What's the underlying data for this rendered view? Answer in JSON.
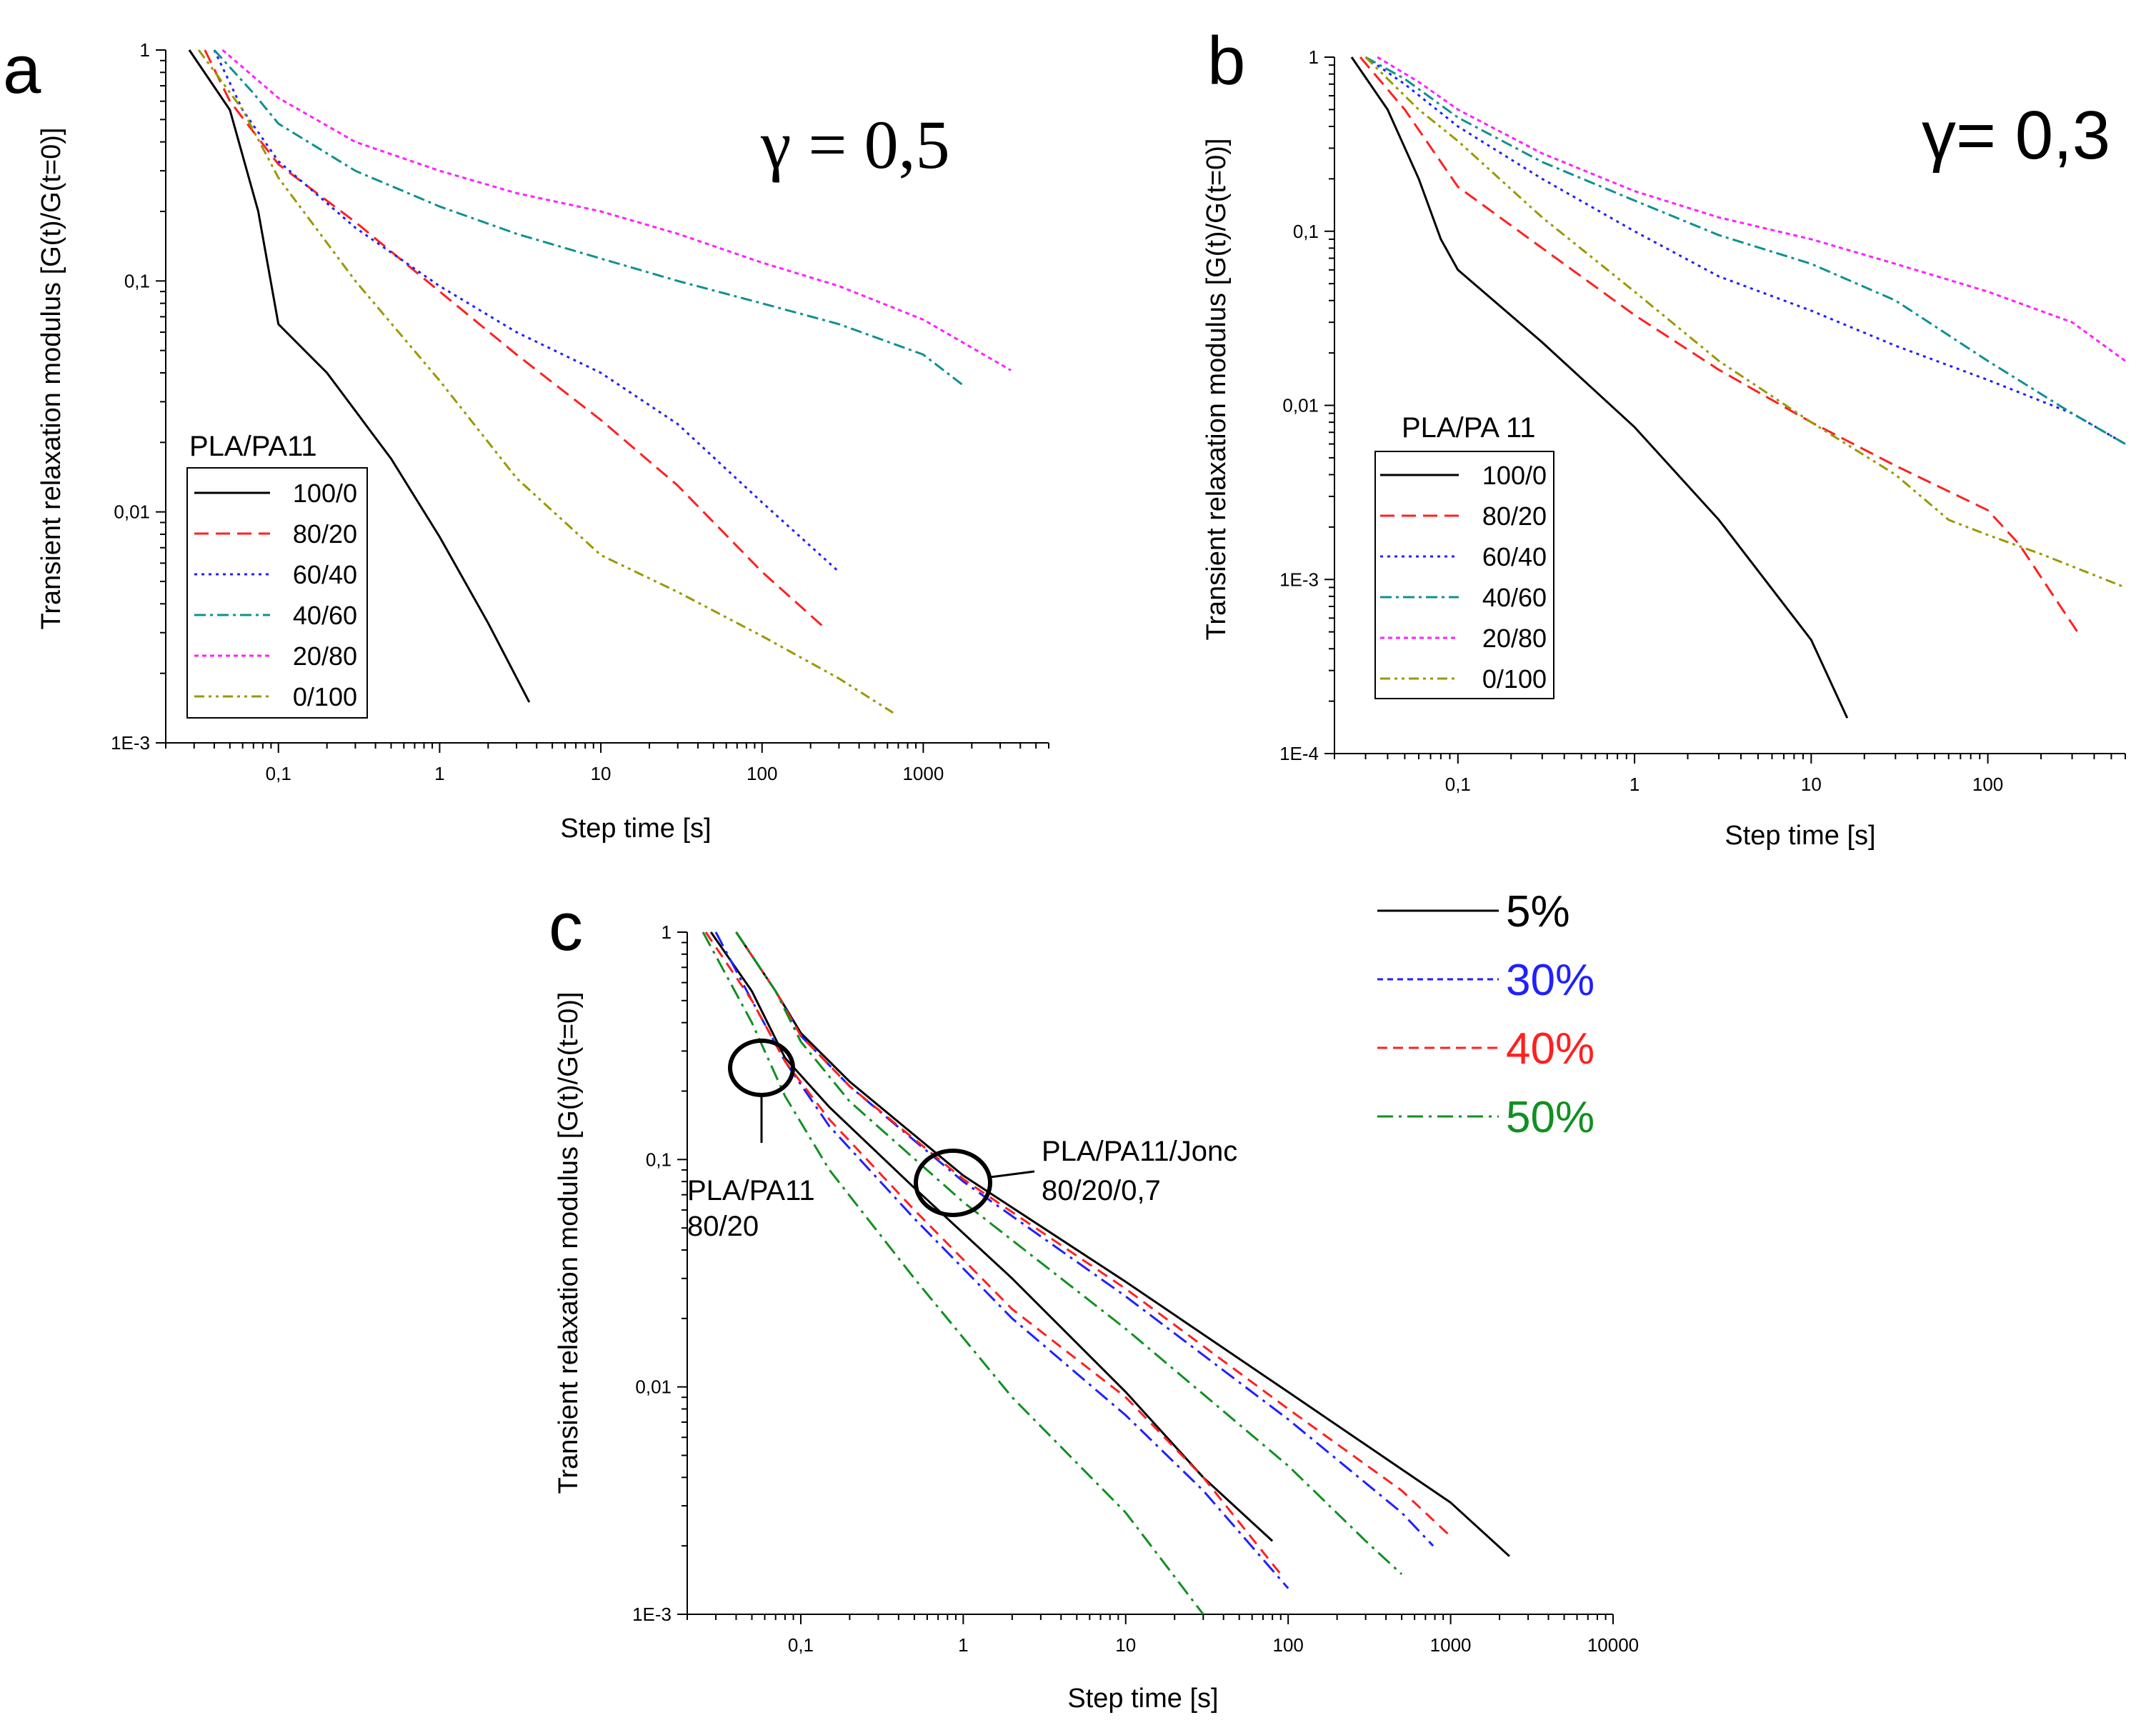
{
  "figure": {
    "ylabel": "Transient relaxation modulus [G(t)/G(t=0)]",
    "xlabel": "Step time [s]",
    "legend_title": "PLA/PA11",
    "legend_title_b": "PLA/PA 11",
    "gamma_a": "γ = 0,5",
    "gamma_b": "γ= 0,3",
    "annotations": [
      {
        "text_lines": [
          "PLA/PA11",
          "80/20"
        ]
      },
      {
        "text_lines": [
          "PLA/PA11/Jonc",
          "80/20/0,7"
        ]
      }
    ],
    "strain_legend": [
      {
        "label": "5%",
        "color": "#000000"
      },
      {
        "label": "30%",
        "color": "#2020ff"
      },
      {
        "label": "40%",
        "color": "#ff2020"
      },
      {
        "label": "50%",
        "color": "#109020"
      }
    ]
  },
  "chart_data": [
    {
      "panel": "a",
      "type": "line",
      "log_x": true,
      "log_y": true,
      "xlim": [
        0.02,
        6000
      ],
      "ylim": [
        0.001,
        1
      ],
      "xticks": [
        0.1,
        1,
        10,
        100,
        1000
      ],
      "xtick_labels": [
        "0,1",
        "1",
        "10",
        "100",
        "1000"
      ],
      "yticks": [
        0.001,
        0.01,
        0.1,
        1
      ],
      "ytick_labels": [
        "1E-3",
        "0,01",
        "0,1",
        "1"
      ],
      "series": [
        {
          "name": "100/0",
          "color": "#000000",
          "dash": "none",
          "x": [
            0.028,
            0.05,
            0.075,
            0.1,
            0.2,
            0.5,
            1,
            2,
            3.6
          ],
          "y": [
            1,
            0.55,
            0.2,
            0.065,
            0.04,
            0.017,
            0.0078,
            0.0033,
            0.0015
          ]
        },
        {
          "name": "80/20",
          "color": "#ff2020",
          "dash": "20 10",
          "x": [
            0.035,
            0.05,
            0.1,
            0.3,
            1,
            3,
            10,
            30,
            100,
            250
          ],
          "y": [
            1,
            0.6,
            0.32,
            0.18,
            0.09,
            0.048,
            0.025,
            0.013,
            0.0055,
            0.0031
          ]
        },
        {
          "name": "60/40",
          "color": "#2020ff",
          "dash": "4 6",
          "x": [
            0.04,
            0.06,
            0.1,
            0.3,
            1,
            3,
            10,
            30,
            100,
            300
          ],
          "y": [
            1,
            0.55,
            0.33,
            0.17,
            0.095,
            0.06,
            0.04,
            0.024,
            0.011,
            0.0055
          ]
        },
        {
          "name": "40/60",
          "color": "#109090",
          "dash": "16 6 4 6",
          "x": [
            0.04,
            0.07,
            0.1,
            0.3,
            1,
            3,
            10,
            30,
            100,
            300,
            1000,
            1800
          ],
          "y": [
            1,
            0.65,
            0.48,
            0.3,
            0.21,
            0.16,
            0.125,
            0.1,
            0.08,
            0.065,
            0.048,
            0.035
          ]
        },
        {
          "name": "20/80",
          "color": "#ff20ff",
          "dash": "6 5",
          "x": [
            0.045,
            0.1,
            0.3,
            1,
            3,
            10,
            30,
            100,
            300,
            1000,
            3500
          ],
          "y": [
            1,
            0.62,
            0.4,
            0.3,
            0.24,
            0.2,
            0.16,
            0.12,
            0.095,
            0.068,
            0.041
          ]
        },
        {
          "name": "0/100",
          "color": "#999900",
          "dash": "14 6 4 6 4 6",
          "x": [
            0.032,
            0.06,
            0.1,
            0.3,
            1,
            3,
            10,
            30,
            100,
            300,
            650
          ],
          "y": [
            1,
            0.55,
            0.28,
            0.1,
            0.037,
            0.014,
            0.0065,
            0.0045,
            0.0029,
            0.0019,
            0.00135
          ]
        }
      ]
    },
    {
      "panel": "b",
      "type": "line",
      "log_x": true,
      "log_y": true,
      "xlim": [
        0.02,
        600
      ],
      "ylim": [
        0.0001,
        1
      ],
      "xticks": [
        0.1,
        1,
        10,
        100
      ],
      "xtick_labels": [
        "0,1",
        "1",
        "10",
        "100"
      ],
      "yticks": [
        0.0001,
        0.001,
        0.01,
        0.1,
        1
      ],
      "ytick_labels": [
        "1E-4",
        "1E-3",
        "0,01",
        "0,1",
        "1"
      ],
      "series": [
        {
          "name": "100/0",
          "color": "#000000",
          "dash": "none",
          "x": [
            0.025,
            0.04,
            0.06,
            0.08,
            0.1,
            0.3,
            1,
            3,
            10,
            16
          ],
          "y": [
            1,
            0.5,
            0.2,
            0.09,
            0.06,
            0.023,
            0.0075,
            0.0022,
            0.00045,
            0.00016
          ]
        },
        {
          "name": "80/20",
          "color": "#ff2020",
          "dash": "20 10",
          "x": [
            0.028,
            0.05,
            0.1,
            0.3,
            1,
            3,
            10,
            30,
            100,
            150,
            330
          ],
          "y": [
            1,
            0.5,
            0.18,
            0.08,
            0.033,
            0.016,
            0.008,
            0.0045,
            0.0025,
            0.0016,
            0.00048
          ]
        },
        {
          "name": "60/40",
          "color": "#2020ff",
          "dash": "4 6",
          "x": [
            0.03,
            0.05,
            0.1,
            0.3,
            1,
            3,
            10,
            30,
            100,
            300,
            600
          ],
          "y": [
            1,
            0.7,
            0.4,
            0.2,
            0.1,
            0.055,
            0.035,
            0.022,
            0.014,
            0.009,
            0.006
          ]
        },
        {
          "name": "40/60",
          "color": "#109090",
          "dash": "16 6 4 6",
          "x": [
            0.03,
            0.05,
            0.1,
            0.3,
            1,
            3,
            10,
            30,
            100,
            300,
            600
          ],
          "y": [
            1,
            0.75,
            0.45,
            0.25,
            0.15,
            0.095,
            0.065,
            0.04,
            0.018,
            0.009,
            0.006
          ]
        },
        {
          "name": "20/80",
          "color": "#ff20ff",
          "dash": "6 5",
          "x": [
            0.035,
            0.06,
            0.1,
            0.3,
            1,
            3,
            10,
            30,
            100,
            300,
            600
          ],
          "y": [
            1,
            0.72,
            0.5,
            0.28,
            0.17,
            0.12,
            0.09,
            0.065,
            0.045,
            0.03,
            0.018
          ]
        },
        {
          "name": "0/100",
          "color": "#999900",
          "dash": "14 6 4 6 4 6",
          "x": [
            0.03,
            0.06,
            0.1,
            0.3,
            1,
            3,
            10,
            30,
            60,
            100,
            200,
            600
          ],
          "y": [
            1,
            0.5,
            0.33,
            0.12,
            0.045,
            0.018,
            0.008,
            0.004,
            0.0022,
            0.0018,
            0.0014,
            0.0009
          ]
        }
      ],
      "legend_title": "PLA/PA 11"
    },
    {
      "panel": "c",
      "type": "line",
      "log_x": true,
      "log_y": true,
      "xlim": [
        0.02,
        10000
      ],
      "ylim": [
        0.001,
        1
      ],
      "xticks": [
        0.1,
        1,
        10,
        100,
        1000,
        10000
      ],
      "xtick_labels": [
        "0,1",
        "1",
        "10",
        "100",
        "1000",
        "10000"
      ],
      "yticks": [
        0.001,
        0.01,
        0.1,
        1
      ],
      "ytick_labels": [
        "1E-3",
        "0,01",
        "0,1",
        "1"
      ],
      "series": [
        {
          "name": "5% PLA/PA11 80/20",
          "color": "#000000",
          "dash": "none",
          "x": [
            0.028,
            0.05,
            0.08,
            0.15,
            0.5,
            2,
            10,
            30,
            80
          ],
          "y": [
            1,
            0.55,
            0.28,
            0.17,
            0.075,
            0.03,
            0.0095,
            0.004,
            0.0021
          ]
        },
        {
          "name": "30% PLA/PA11 80/20",
          "color": "#2020ff",
          "dash": "22 8 4 8",
          "x": [
            0.03,
            0.05,
            0.08,
            0.15,
            0.5,
            2,
            10,
            30,
            100
          ],
          "y": [
            1,
            0.5,
            0.27,
            0.14,
            0.055,
            0.02,
            0.0075,
            0.0035,
            0.0013
          ]
        },
        {
          "name": "40% PLA/PA11 80/20",
          "color": "#ff2020",
          "dash": "16 10",
          "x": [
            0.026,
            0.05,
            0.08,
            0.15,
            0.5,
            2,
            10,
            30,
            90
          ],
          "y": [
            1,
            0.5,
            0.27,
            0.15,
            0.06,
            0.022,
            0.009,
            0.004,
            0.0015
          ]
        },
        {
          "name": "50% PLA/PA11 80/20",
          "color": "#109020",
          "dash": "22 8 4 8",
          "x": [
            0.025,
            0.05,
            0.08,
            0.15,
            0.5,
            2,
            10,
            30
          ],
          "y": [
            1,
            0.4,
            0.19,
            0.09,
            0.03,
            0.009,
            0.0028,
            0.001
          ]
        },
        {
          "name": "5% PLA/PA11/Jonc 80/20/0,7",
          "color": "#000000",
          "dash": "none",
          "x": [
            0.04,
            0.07,
            0.1,
            0.2,
            1,
            10,
            100,
            1000,
            2300
          ],
          "y": [
            1,
            0.55,
            0.36,
            0.22,
            0.085,
            0.029,
            0.0095,
            0.0031,
            0.0018
          ]
        },
        {
          "name": "30% PLA/PA11/Jonc 80/20/0,7",
          "color": "#2020ff",
          "dash": "22 8 4 8",
          "x": [
            0.04,
            0.07,
            0.1,
            0.2,
            1,
            10,
            100,
            500,
            780
          ],
          "y": [
            1,
            0.55,
            0.35,
            0.21,
            0.08,
            0.025,
            0.0072,
            0.0028,
            0.002
          ]
        },
        {
          "name": "40% PLA/PA11/Jonc 80/20/0,7",
          "color": "#ff2020",
          "dash": "16 10",
          "x": [
            0.04,
            0.07,
            0.1,
            0.2,
            1,
            10,
            100,
            500,
            1000
          ],
          "y": [
            1,
            0.55,
            0.35,
            0.21,
            0.082,
            0.027,
            0.008,
            0.0035,
            0.0022
          ]
        },
        {
          "name": "50% PLA/PA11/Jonc 80/20/0,7",
          "color": "#109020",
          "dash": "22 8 4 8",
          "x": [
            0.04,
            0.07,
            0.1,
            0.2,
            1,
            10,
            100,
            300,
            500
          ],
          "y": [
            1,
            0.55,
            0.33,
            0.18,
            0.065,
            0.018,
            0.0045,
            0.0021,
            0.0015
          ]
        }
      ]
    }
  ]
}
